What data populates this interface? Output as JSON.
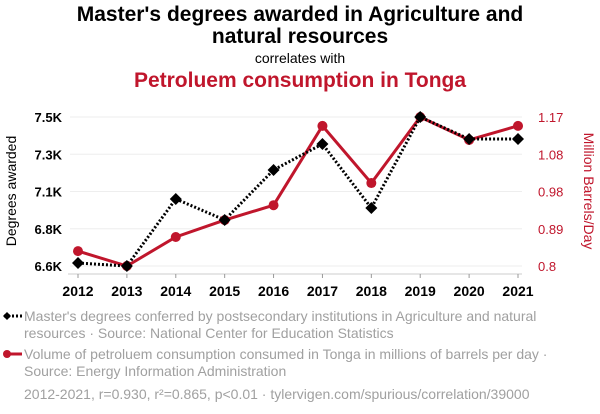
{
  "chart_data": {
    "type": "line",
    "title": "Master's degrees awarded in Agriculture and natural resources",
    "subtitle": "correlates with",
    "title2": "Petroluem consumption in Tonga",
    "x": [
      "2012",
      "2013",
      "2014",
      "2015",
      "2016",
      "2017",
      "2018",
      "2019",
      "2020",
      "2021"
    ],
    "ylabel": "Degrees awarded",
    "y2label": "Million Barrels/Day",
    "yticks": [
      "6.6K",
      "6.8K",
      "7.1K",
      "7.3K",
      "7.5K"
    ],
    "ytick_values": [
      6600,
      6825,
      7050,
      7275,
      7500
    ],
    "y2ticks": [
      "0.8",
      "0.89",
      "0.98",
      "1.08",
      "1.17"
    ],
    "y2tick_values": [
      0.8,
      0.8925,
      0.985,
      1.0775,
      1.17
    ],
    "ylim": [
      6600,
      7500
    ],
    "y2lim": [
      0.8,
      1.17
    ],
    "series": [
      {
        "name": "Master's degrees conferred by postsecondary institutions in Agriculture and natural resources · Source: National Center for Education Statistics",
        "axis": "left",
        "color": "#000000",
        "values": [
          6618,
          6600,
          7005,
          6878,
          7180,
          7337,
          6950,
          7500,
          7367,
          7367
        ]
      },
      {
        "name": "Volume of petroluem consumption consumed in Tonga in millions of barrels per day · Source: Energy Information Administration",
        "axis": "right",
        "color": "#c0162c",
        "values": [
          0.837,
          0.8,
          0.872,
          0.914,
          0.951,
          1.148,
          1.006,
          1.17,
          1.113,
          1.148
        ]
      }
    ],
    "footer": "2012-2021, r=0.930, r²=0.865, p<0.01 · tylervigen.com/spurious/correlation/39000"
  }
}
